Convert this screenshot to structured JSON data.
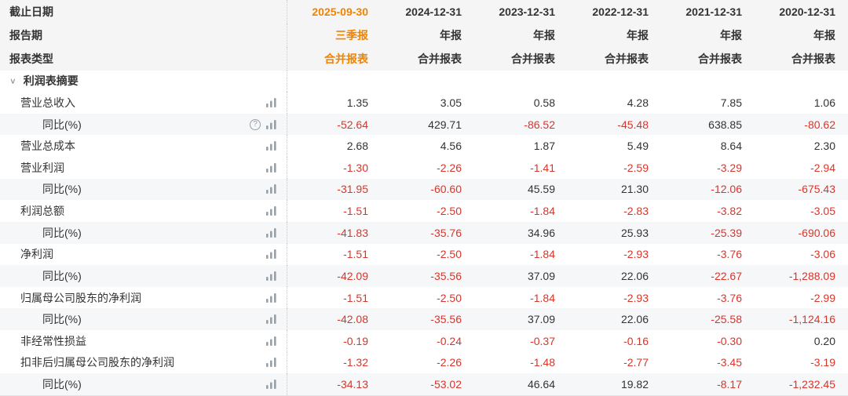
{
  "colors": {
    "highlight_orange": "#f08300",
    "negative_red": "#d9352a",
    "header_bg": "#f5f5f5",
    "stripe_bg": "#f6f7f9",
    "text": "#333333"
  },
  "header": {
    "rows": [
      {
        "label": "截止日期",
        "values": [
          "2025-09-30",
          "2024-12-31",
          "2023-12-31",
          "2022-12-31",
          "2021-12-31",
          "2020-12-31"
        ]
      },
      {
        "label": "报告期",
        "values": [
          "三季报",
          "年报",
          "年报",
          "年报",
          "年报",
          "年报"
        ]
      },
      {
        "label": "报表类型",
        "values": [
          "合并报表",
          "合并报表",
          "合并报表",
          "合并报表",
          "合并报表",
          "合并报表"
        ]
      }
    ]
  },
  "section": {
    "collapse_icon": "∨",
    "title": "利润表摘要"
  },
  "rows": [
    {
      "label": "营业总收入",
      "indent": false,
      "icons": [
        "bar-chart"
      ],
      "values": [
        "1.35",
        "3.05",
        "0.58",
        "4.28",
        "7.85",
        "1.06"
      ]
    },
    {
      "label": "同比(%)",
      "indent": true,
      "icons": [
        "help",
        "bar-chart"
      ],
      "values": [
        "-52.64",
        "429.71",
        "-86.52",
        "-45.48",
        "638.85",
        "-80.62"
      ]
    },
    {
      "label": "营业总成本",
      "indent": false,
      "icons": [
        "bar-chart"
      ],
      "values": [
        "2.68",
        "4.56",
        "1.87",
        "5.49",
        "8.64",
        "2.30"
      ]
    },
    {
      "label": "营业利润",
      "indent": false,
      "icons": [
        "bar-chart"
      ],
      "values": [
        "-1.30",
        "-2.26",
        "-1.41",
        "-2.59",
        "-3.29",
        "-2.94"
      ]
    },
    {
      "label": "同比(%)",
      "indent": true,
      "icons": [
        "bar-chart"
      ],
      "values": [
        "-31.95",
        "-60.60",
        "45.59",
        "21.30",
        "-12.06",
        "-675.43"
      ]
    },
    {
      "label": "利润总额",
      "indent": false,
      "icons": [
        "bar-chart"
      ],
      "values": [
        "-1.51",
        "-2.50",
        "-1.84",
        "-2.83",
        "-3.82",
        "-3.05"
      ]
    },
    {
      "label": "同比(%)",
      "indent": true,
      "icons": [
        "bar-chart"
      ],
      "values": [
        "-41.83",
        "-35.76",
        "34.96",
        "25.93",
        "-25.39",
        "-690.06"
      ]
    },
    {
      "label": "净利润",
      "indent": false,
      "icons": [
        "bar-chart"
      ],
      "values": [
        "-1.51",
        "-2.50",
        "-1.84",
        "-2.93",
        "-3.76",
        "-3.06"
      ]
    },
    {
      "label": "同比(%)",
      "indent": true,
      "icons": [
        "bar-chart"
      ],
      "values": [
        "-42.09",
        "-35.56",
        "37.09",
        "22.06",
        "-22.67",
        "-1,288.09"
      ]
    },
    {
      "label": "归属母公司股东的净利润",
      "indent": false,
      "icons": [
        "bar-chart"
      ],
      "values": [
        "-1.51",
        "-2.50",
        "-1.84",
        "-2.93",
        "-3.76",
        "-2.99"
      ]
    },
    {
      "label": "同比(%)",
      "indent": true,
      "icons": [
        "bar-chart"
      ],
      "values": [
        "-42.08",
        "-35.56",
        "37.09",
        "22.06",
        "-25.58",
        "-1,124.16"
      ]
    },
    {
      "label": "非经常性损益",
      "indent": false,
      "icons": [
        "bar-chart"
      ],
      "values": [
        "-0.19",
        "-0.24",
        "-0.37",
        "-0.16",
        "-0.30",
        "0.20"
      ]
    },
    {
      "label": "扣非后归属母公司股东的净利润",
      "indent": false,
      "icons": [
        "bar-chart"
      ],
      "values": [
        "-1.32",
        "-2.26",
        "-1.48",
        "-2.77",
        "-3.45",
        "-3.19"
      ]
    },
    {
      "label": "同比(%)",
      "indent": true,
      "icons": [
        "bar-chart"
      ],
      "values": [
        "-34.13",
        "-53.02",
        "46.64",
        "19.82",
        "-8.17",
        "-1,232.45"
      ]
    }
  ]
}
